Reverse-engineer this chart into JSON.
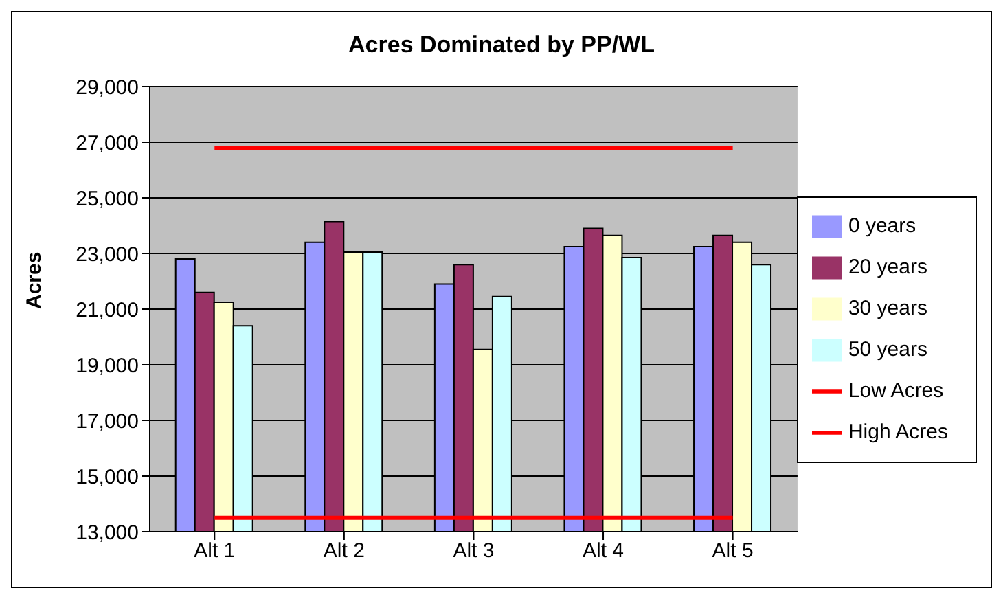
{
  "chart_data": {
    "type": "bar",
    "title": "Acres Dominated by PP/WL",
    "ylabel": "Acres",
    "categories": [
      "Alt 1",
      "Alt 2",
      "Alt 3",
      "Alt 4",
      "Alt 5"
    ],
    "series": [
      {
        "name": "0 years",
        "color": "#9999ff",
        "values": [
          22800,
          23400,
          21900,
          23250,
          23250
        ]
      },
      {
        "name": "20 years",
        "color": "#993366",
        "values": [
          21600,
          24150,
          22600,
          23900,
          23650
        ]
      },
      {
        "name": "30 years",
        "color": "#ffffcc",
        "values": [
          21250,
          23050,
          19550,
          23650,
          23400
        ]
      },
      {
        "name": "50 years",
        "color": "#ccffff",
        "values": [
          20400,
          23050,
          21450,
          22850,
          22600
        ]
      },
      {
        "name": "Low Acres",
        "color": "#ff0000",
        "type": "line",
        "marker": "none",
        "values": [
          13500,
          13500,
          13500,
          13500,
          13500
        ]
      },
      {
        "name": "High Acres",
        "color": "#ff0000",
        "type": "line",
        "marker": "none",
        "values": [
          26800,
          26800,
          26800,
          26800,
          26800
        ]
      }
    ],
    "ylim": [
      13000,
      29000
    ],
    "yticks": [
      {
        "value": 13000,
        "label": "13,000"
      },
      {
        "value": 15000,
        "label": "15,000"
      },
      {
        "value": 17000,
        "label": "17,000"
      },
      {
        "value": 19000,
        "label": "19,000"
      },
      {
        "value": 21000,
        "label": "21,000"
      },
      {
        "value": 23000,
        "label": "23,000"
      },
      {
        "value": 25000,
        "label": "25,000"
      },
      {
        "value": 27000,
        "label": "27,000"
      },
      {
        "value": 29000,
        "label": "29,000"
      }
    ],
    "grid": "y",
    "legend": "right"
  }
}
